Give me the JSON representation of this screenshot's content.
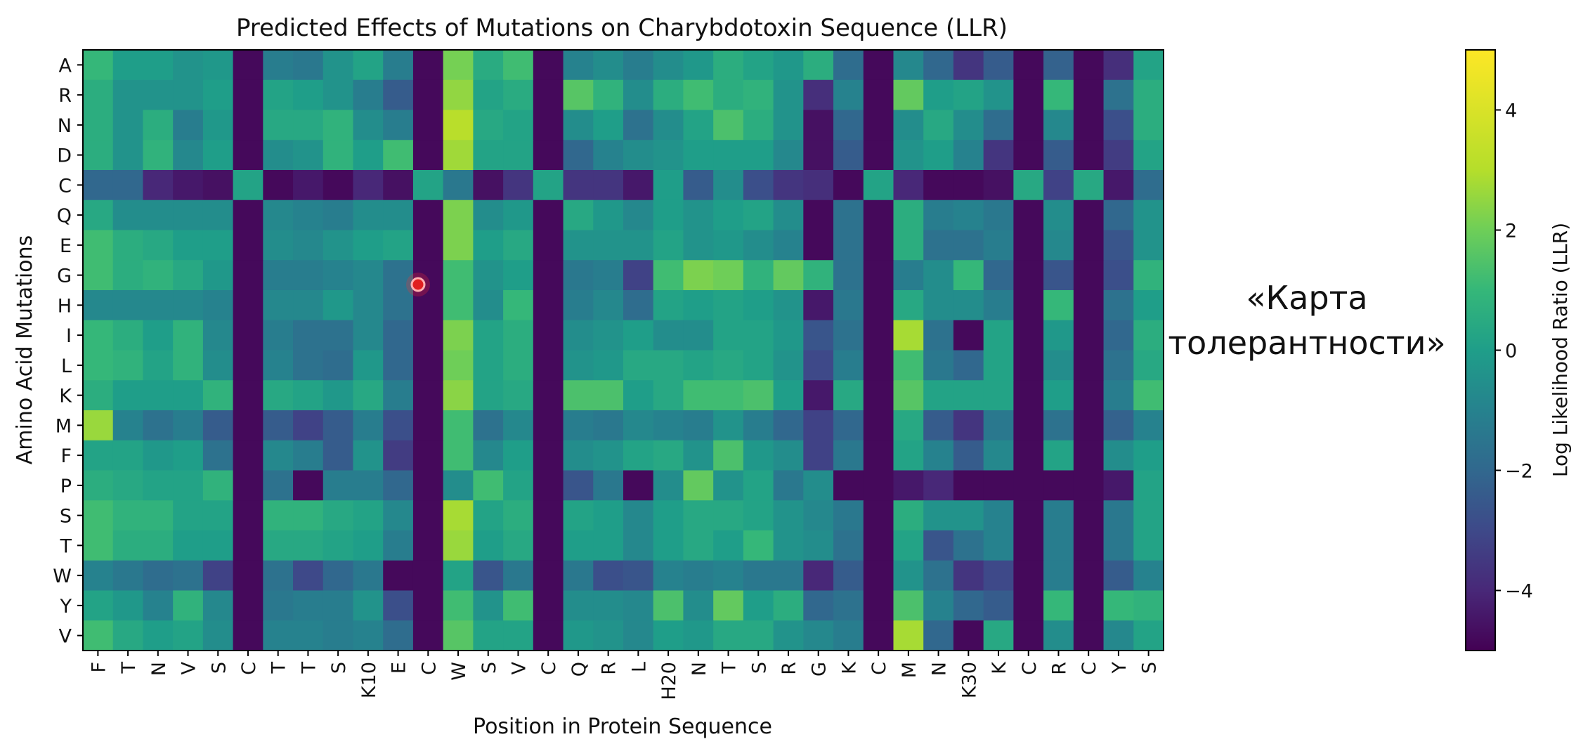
{
  "chart_data": {
    "type": "heatmap",
    "title": "Predicted Effects of Mutations on Charybdotoxin Sequence (LLR)",
    "xlabel": "Position in Protein Sequence",
    "ylabel": "Amino Acid Mutations",
    "colorbar_label": "Log Likelihood Ratio (LLR)",
    "colormap": "viridis",
    "vmin": -5,
    "vmax": 5,
    "colorbar_ticks": [
      4,
      2,
      0,
      -2,
      -4
    ],
    "x_labels": [
      "F",
      "T",
      "N",
      "V",
      "S",
      "C",
      "T",
      "T",
      "S",
      "K10",
      "E",
      "C",
      "W",
      "S",
      "V",
      "C",
      "Q",
      "R",
      "L",
      "H20",
      "N",
      "T",
      "S",
      "R",
      "G",
      "K",
      "C",
      "M",
      "N",
      "K30",
      "K",
      "C",
      "R",
      "C",
      "Y",
      "S"
    ],
    "y_labels": [
      "A",
      "R",
      "N",
      "D",
      "C",
      "Q",
      "E",
      "G",
      "H",
      "I",
      "L",
      "K",
      "M",
      "F",
      "P",
      "S",
      "T",
      "W",
      "Y",
      "V"
    ],
    "values": [
      [
        1.0,
        0.0,
        0.0,
        -0.4,
        -0.2,
        -4.8,
        -1.2,
        -1.4,
        -0.4,
        0.2,
        -1.2,
        -4.8,
        2.1,
        0.5,
        1.2,
        -4.8,
        -1.0,
        -0.6,
        -1.2,
        -0.6,
        -0.2,
        0.6,
        0.2,
        -0.2,
        0.6,
        -1.8,
        -4.8,
        -0.8,
        -2.0,
        -3.6,
        -2.4,
        -4.8,
        -2.2,
        -4.8,
        -3.8,
        0.2
      ],
      [
        0.6,
        -0.4,
        -0.4,
        -0.4,
        0.0,
        -4.8,
        0.2,
        0.0,
        -0.4,
        -1.2,
        -2.4,
        -4.8,
        2.5,
        0.2,
        0.5,
        -4.8,
        1.6,
        0.8,
        -0.6,
        0.6,
        1.2,
        0.6,
        0.8,
        -0.4,
        -3.8,
        -1.0,
        -4.8,
        1.8,
        0.0,
        0.2,
        -0.4,
        -4.8,
        1.0,
        -4.8,
        -1.6,
        0.6
      ],
      [
        0.6,
        -0.4,
        0.6,
        -1.2,
        -0.2,
        -4.8,
        0.4,
        0.4,
        0.8,
        -0.6,
        -1.2,
        -4.8,
        3.1,
        0.4,
        0.2,
        -4.8,
        -0.6,
        0.0,
        -1.6,
        -0.6,
        0.2,
        1.4,
        0.6,
        -0.4,
        -4.6,
        -2.0,
        -4.8,
        -0.6,
        0.4,
        -0.6,
        -1.8,
        -4.8,
        -0.8,
        -4.8,
        -2.8,
        0.6
      ],
      [
        0.6,
        -0.4,
        0.8,
        -0.8,
        0.0,
        -4.8,
        -0.6,
        -0.4,
        0.8,
        0.0,
        1.2,
        -4.8,
        2.7,
        0.2,
        0.2,
        -4.8,
        -2.0,
        -1.0,
        -0.6,
        -0.4,
        0.0,
        0.0,
        0.0,
        -0.8,
        -4.6,
        -2.4,
        -4.8,
        -0.4,
        0.0,
        -1.0,
        -3.6,
        -4.8,
        -2.4,
        -4.8,
        -3.4,
        0.2
      ],
      [
        -2.0,
        -2.0,
        -4.0,
        -4.4,
        -4.6,
        0.2,
        -4.8,
        -4.4,
        -4.8,
        -4.0,
        -4.6,
        0.2,
        -1.4,
        -4.6,
        -3.6,
        0.2,
        -3.6,
        -3.6,
        -4.4,
        0.0,
        -2.4,
        -0.6,
        -2.8,
        -3.6,
        -3.8,
        -4.8,
        0.2,
        -4.0,
        -4.8,
        -4.8,
        -4.6,
        0.4,
        -3.2,
        0.4,
        -4.4,
        -1.8
      ],
      [
        0.4,
        -0.6,
        -0.6,
        -0.6,
        -0.6,
        -4.8,
        -0.8,
        -1.0,
        -1.2,
        -0.6,
        -0.6,
        -4.8,
        2.2,
        -0.6,
        -0.2,
        -4.8,
        0.4,
        -0.2,
        -0.8,
        0.0,
        -0.4,
        0.0,
        0.2,
        -0.6,
        -4.8,
        -1.6,
        -4.8,
        0.6,
        -1.2,
        -1.0,
        -1.4,
        -4.8,
        -0.6,
        -4.8,
        -2.0,
        -0.4
      ],
      [
        1.2,
        0.6,
        0.4,
        0.0,
        0.0,
        -4.8,
        -0.6,
        -0.8,
        -0.4,
        0.0,
        0.2,
        -4.8,
        2.2,
        0.0,
        0.4,
        -4.8,
        -0.4,
        -0.4,
        -0.4,
        0.2,
        -0.4,
        -0.2,
        -0.6,
        -1.0,
        -4.8,
        -1.6,
        -4.8,
        0.6,
        -1.6,
        -1.6,
        -1.2,
        -4.8,
        -0.8,
        -4.8,
        -2.6,
        -0.4
      ],
      [
        1.2,
        0.6,
        0.8,
        0.4,
        -0.2,
        -4.8,
        -1.2,
        -1.2,
        -1.0,
        -0.8,
        -1.6,
        -4.8,
        1.2,
        -0.4,
        0.0,
        -4.8,
        -1.4,
        -1.2,
        -3.2,
        1.2,
        2.2,
        2.0,
        0.8,
        1.8,
        0.8,
        -1.6,
        -4.8,
        -1.2,
        -0.6,
        1.0,
        -2.0,
        -4.8,
        -2.6,
        -4.8,
        -2.8,
        0.8
      ],
      [
        -0.8,
        -0.8,
        -0.8,
        -0.8,
        -1.0,
        -4.8,
        -0.8,
        -0.8,
        -0.2,
        -0.8,
        -1.6,
        -4.8,
        1.2,
        -0.6,
        1.0,
        -4.8,
        -1.2,
        -0.8,
        -1.8,
        0.2,
        0.0,
        0.2,
        0.0,
        -0.4,
        -4.4,
        -1.4,
        -4.8,
        0.4,
        -0.6,
        -0.6,
        -1.2,
        -4.8,
        1.0,
        -4.8,
        -1.6,
        0.0
      ],
      [
        1.0,
        0.6,
        0.0,
        0.8,
        -0.8,
        -4.8,
        -1.2,
        -1.6,
        -1.6,
        -0.8,
        -2.0,
        -4.8,
        2.2,
        0.2,
        0.6,
        -4.8,
        -0.6,
        -0.4,
        0.0,
        -0.6,
        -0.6,
        0.2,
        0.2,
        -0.2,
        -2.6,
        -1.6,
        -4.8,
        2.8,
        -1.6,
        -4.8,
        0.2,
        -4.8,
        -0.2,
        -4.8,
        -2.0,
        0.6
      ],
      [
        1.0,
        0.8,
        0.2,
        0.8,
        -0.6,
        -4.8,
        -1.0,
        -1.6,
        -1.8,
        -0.2,
        -2.0,
        -4.8,
        2.0,
        0.2,
        0.6,
        -4.8,
        -0.4,
        -0.2,
        0.4,
        0.4,
        0.2,
        0.4,
        0.2,
        -0.4,
        -3.0,
        -1.2,
        -4.8,
        1.2,
        -1.4,
        -2.0,
        0.2,
        -4.8,
        -0.6,
        -4.8,
        -1.6,
        0.4
      ],
      [
        0.6,
        0.0,
        0.0,
        0.0,
        0.8,
        -4.8,
        0.4,
        0.2,
        -0.2,
        0.4,
        -1.2,
        -4.8,
        2.4,
        0.2,
        0.4,
        -4.8,
        1.4,
        1.4,
        0.0,
        0.4,
        1.2,
        1.2,
        1.4,
        0.0,
        -4.4,
        0.4,
        -4.8,
        1.6,
        0.2,
        0.2,
        0.2,
        -4.8,
        0.0,
        -4.8,
        -1.2,
        1.2
      ],
      [
        2.6,
        -1.0,
        -1.6,
        -1.2,
        -2.4,
        -4.8,
        -2.4,
        -3.2,
        -2.4,
        -1.2,
        -2.8,
        -4.8,
        1.2,
        -1.6,
        -0.8,
        -4.8,
        -1.2,
        -1.4,
        -0.8,
        -1.0,
        -1.2,
        -0.4,
        -1.2,
        -2.0,
        -3.2,
        -2.0,
        -4.8,
        0.4,
        -2.4,
        -3.6,
        -1.4,
        -4.8,
        -1.6,
        -4.8,
        -2.2,
        -1.0
      ],
      [
        0.2,
        0.2,
        -0.2,
        0.0,
        -1.6,
        -4.8,
        -0.8,
        -1.2,
        -2.4,
        -0.4,
        -3.4,
        -4.8,
        1.2,
        -0.8,
        0.0,
        -4.8,
        -0.6,
        -0.4,
        0.2,
        0.4,
        -0.4,
        1.4,
        -0.2,
        -0.6,
        -3.2,
        -1.4,
        -4.8,
        0.2,
        -1.0,
        -2.4,
        -0.8,
        -4.8,
        0.2,
        -4.8,
        -0.6,
        0.0
      ],
      [
        0.6,
        0.4,
        0.2,
        0.2,
        0.8,
        -4.8,
        -1.6,
        -4.8,
        -1.2,
        -1.2,
        -2.0,
        -4.8,
        -0.6,
        1.2,
        0.2,
        -4.8,
        -2.6,
        -1.4,
        -4.8,
        -0.6,
        1.8,
        -0.4,
        0.2,
        -1.4,
        -0.6,
        -4.8,
        -4.8,
        -4.4,
        -4.0,
        -4.8,
        -4.8,
        -4.8,
        -4.8,
        -4.8,
        -4.4,
        0.2
      ],
      [
        1.2,
        0.8,
        0.8,
        0.2,
        0.2,
        -4.8,
        0.8,
        0.8,
        0.4,
        0.2,
        -0.8,
        -4.8,
        2.8,
        0.2,
        0.6,
        -4.8,
        0.2,
        0.0,
        -0.8,
        0.0,
        0.4,
        0.4,
        0.2,
        -0.4,
        -0.8,
        -1.4,
        -4.8,
        0.6,
        -0.4,
        -0.4,
        -1.0,
        -4.8,
        -1.2,
        -4.8,
        -1.4,
        0.2
      ],
      [
        1.2,
        0.6,
        0.6,
        0.0,
        0.0,
        -4.8,
        0.4,
        0.4,
        0.2,
        0.0,
        -1.2,
        -4.8,
        2.6,
        0.0,
        0.4,
        -4.8,
        0.0,
        0.0,
        -0.8,
        0.0,
        0.4,
        0.0,
        1.0,
        -0.4,
        -0.6,
        -1.6,
        -4.8,
        0.2,
        -2.6,
        -1.6,
        -1.0,
        -4.8,
        -1.2,
        -4.8,
        -1.4,
        0.2
      ],
      [
        -1.0,
        -1.4,
        -1.8,
        -1.6,
        -3.2,
        -4.8,
        -1.6,
        -3.0,
        -2.0,
        -1.4,
        -4.8,
        -4.8,
        0.2,
        -2.6,
        -1.4,
        -4.8,
        -1.4,
        -2.8,
        -2.6,
        -1.0,
        -1.2,
        -1.0,
        -1.4,
        -1.4,
        -4.0,
        -2.4,
        -4.8,
        -0.4,
        -1.6,
        -3.6,
        -3.0,
        -4.8,
        -1.2,
        -4.8,
        -2.4,
        -1.0
      ],
      [
        0.2,
        -0.2,
        -1.0,
        0.8,
        -0.8,
        -4.8,
        -1.4,
        -1.2,
        -1.2,
        -0.4,
        -2.8,
        -4.8,
        1.2,
        -0.4,
        1.2,
        -4.8,
        -0.6,
        -0.6,
        -0.8,
        1.4,
        -0.6,
        1.8,
        0.0,
        0.6,
        -2.0,
        -1.6,
        -4.8,
        1.4,
        -1.0,
        -2.0,
        -2.4,
        -4.8,
        1.0,
        -4.8,
        1.0,
        0.8
      ],
      [
        1.2,
        0.4,
        0.0,
        0.2,
        -0.6,
        -4.8,
        -1.0,
        -1.0,
        -1.2,
        -1.0,
        -1.8,
        -4.8,
        1.6,
        0.2,
        0.2,
        -4.8,
        -0.2,
        -0.4,
        -0.8,
        0.0,
        -0.2,
        0.4,
        0.4,
        -0.4,
        -0.8,
        -1.2,
        -4.8,
        2.8,
        -2.0,
        -4.8,
        0.4,
        -4.8,
        -0.6,
        -4.8,
        -0.8,
        0.2
      ]
    ]
  }
}
